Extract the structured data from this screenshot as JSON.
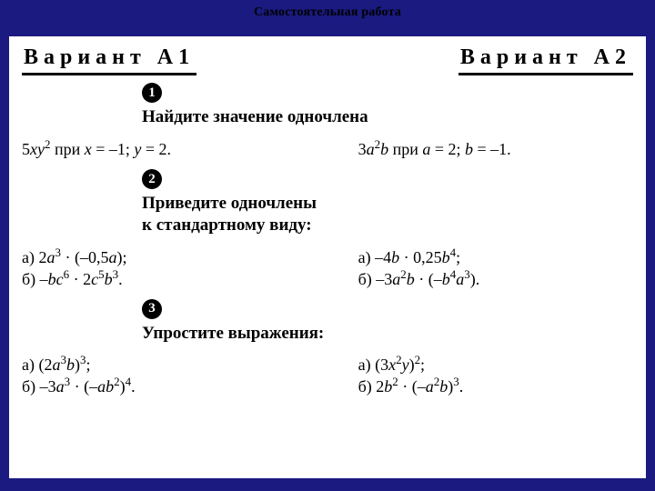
{
  "header": {
    "title": "Самостоятельная работа"
  },
  "variants": {
    "left": "Вариант А1",
    "right": "Вариант А2"
  },
  "sections": [
    {
      "marker": "1",
      "question": "Найдите значение одночлена",
      "left": [
        "5<i>xy</i><sup>2</sup> при <i>x</i> = –1; <i>y</i> = 2."
      ],
      "right": [
        "3<i>a</i><sup>2</sup><i>b</i> при <i>a</i> = 2; <i>b</i> = –1."
      ]
    },
    {
      "marker": "2",
      "question": "Приведите одночлены<br>к стандартному виду:",
      "left": [
        "а) 2<i>a</i><sup>3</sup> · (–0,5<i>a</i>);",
        "б) –<i>bc</i><sup>6</sup> · 2<i>c</i><sup>5</sup><i>b</i><sup>3</sup>."
      ],
      "right": [
        "а) –4<i>b</i> · 0,25<i>b</i><sup>4</sup>;",
        "б) –3<i>a</i><sup>2</sup><i>b</i> · (–<i>b</i><sup>4</sup><i>a</i><sup>3</sup>)."
      ]
    },
    {
      "marker": "3",
      "question": "Упростите выражения:",
      "left": [
        "а) (2<i>a</i><sup>3</sup><i>b</i>)<sup>3</sup>;",
        "б) –3<i>a</i><sup>3</sup> · (–<i>ab</i><sup>2</sup>)<sup>4</sup>."
      ],
      "right": [
        "а) (3<i>x</i><sup>2</sup><i>y</i>)<sup>2</sup>;",
        "б) 2<i>b</i><sup>2</sup> · (–<i>a</i><sup>2</sup><i>b</i>)<sup>3</sup>."
      ]
    }
  ],
  "colors": {
    "page_bg": "#1a1a80",
    "sheet_bg": "#ffffff",
    "text": "#000000"
  }
}
